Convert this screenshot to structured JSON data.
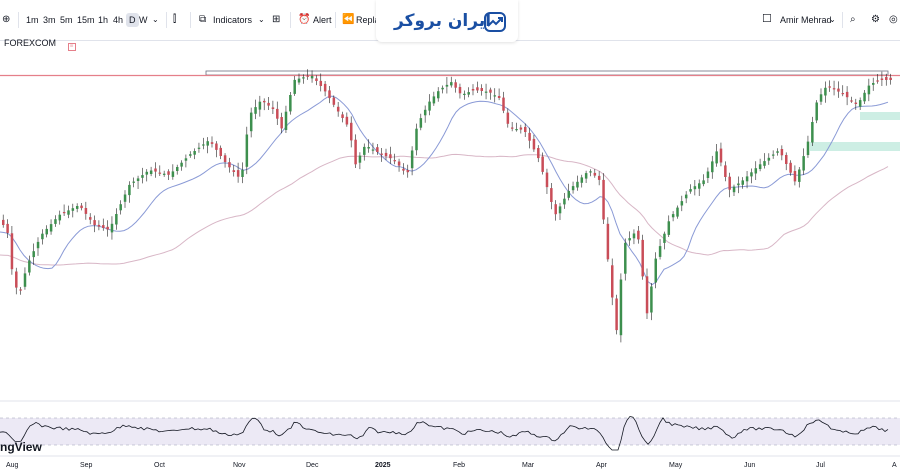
{
  "toolbar": {
    "intervals": [
      "1m",
      "3m",
      "5m",
      "15m",
      "1h",
      "4h",
      "D",
      "W"
    ],
    "active_interval": "D",
    "indicators_label": "Indicators",
    "alert_label": "Alert",
    "replay_label": "Repla",
    "user_name": "Amir Mehrad"
  },
  "logo": {
    "text": "ایران بروکر"
  },
  "symbol": {
    "exchange": "FOREXCOM"
  },
  "watermark": "ngView",
  "colors": {
    "up": "#3d8f4e",
    "down": "#c94d58",
    "hline": "#e57f8a",
    "zone": "#cdeee4",
    "ma_fast": "#8a9ad6",
    "ma_slow": "#d8b6c6",
    "rsi": "#131722",
    "rsi_band": "#ece9f5"
  },
  "chart_data": {
    "type": "candlestick",
    "x_labels": [
      "Aug",
      "Sep",
      "Oct",
      "Nov",
      "Dec",
      "2025",
      "Feb",
      "Mar",
      "Apr",
      "May",
      "Jun",
      "Jul",
      "A"
    ],
    "panes": [
      "price",
      "rsi"
    ]
  }
}
